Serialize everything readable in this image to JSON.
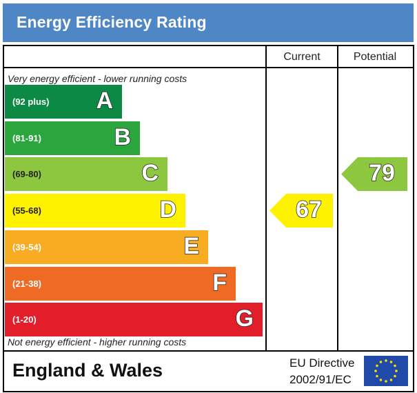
{
  "title": "Energy Efficiency Rating",
  "columns": {
    "current": "Current",
    "potential": "Potential"
  },
  "notes": {
    "top": "Very energy efficient - lower running costs",
    "bottom": "Not energy efficient - higher running costs"
  },
  "footer": {
    "region": "England & Wales",
    "directive_line1": "EU Directive",
    "directive_line2": "2002/91/EC"
  },
  "chart_data": {
    "type": "bar",
    "title": "Energy Efficiency Rating",
    "categories": [
      "A",
      "B",
      "C",
      "D",
      "E",
      "F",
      "G"
    ],
    "ranges": [
      "(92 plus)",
      "(81-91)",
      "(69-80)",
      "(55-68)",
      "(39-54)",
      "(21-38)",
      "(1-20)"
    ],
    "colors": [
      "#0c8a45",
      "#2aa63c",
      "#8dc63f",
      "#fff200",
      "#f7ac22",
      "#ef6a24",
      "#e31e2b"
    ],
    "scale": [
      1,
      7
    ],
    "current": {
      "label": "Current",
      "value": 67,
      "band": "D",
      "color": "#fff200"
    },
    "potential": {
      "label": "Potential",
      "value": 79,
      "band": "C",
      "color": "#8dc63f"
    }
  }
}
